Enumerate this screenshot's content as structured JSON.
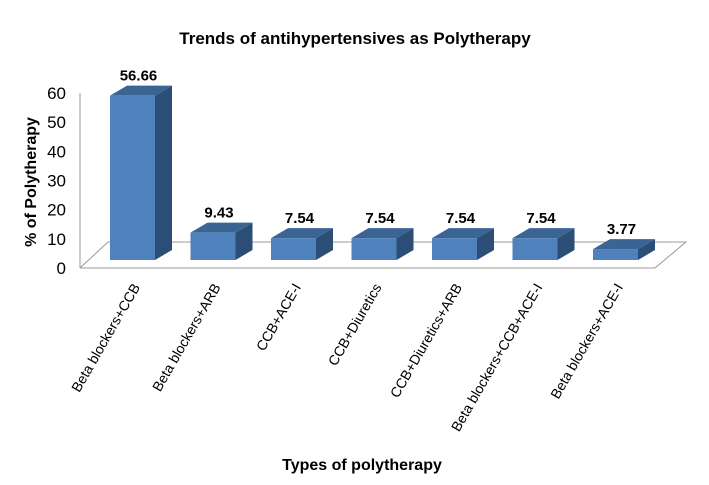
{
  "chart_data": {
    "type": "bar",
    "title": "Trends of antihypertensives as Polytherapy",
    "xlabel": "Types of polytherapy",
    "ylabel": "% of Polytherapy",
    "ylim": [
      0,
      60
    ],
    "yticks": [
      "0",
      "10",
      "20",
      "30",
      "40",
      "50",
      "60"
    ],
    "categories": [
      "Beta blockers+CCB",
      "Beta blockers+ARB",
      "CCB+ACE-I",
      "CCB+Diuretics",
      "CCB+Diuretics+ARB",
      "Beta blockers+CCB+ACE-I",
      "Beta blockers+ACE-I"
    ],
    "values": [
      56.66,
      9.43,
      7.54,
      7.54,
      7.54,
      7.54,
      3.77
    ],
    "data_labels": [
      "56.66",
      "9.43",
      "7.54",
      "7.54",
      "7.54",
      "7.54",
      "3.77"
    ],
    "grid": false,
    "colors": {
      "front": "#4f81bd",
      "side": "#2c4d75",
      "top": "#3a6494"
    }
  }
}
